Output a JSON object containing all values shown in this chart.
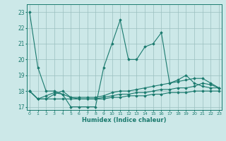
{
  "title": "",
  "xlabel": "Humidex (Indice chaleur)",
  "x_values": [
    0,
    1,
    2,
    3,
    4,
    5,
    6,
    7,
    8,
    9,
    10,
    11,
    12,
    13,
    14,
    15,
    16,
    17,
    18,
    19,
    20,
    21,
    22,
    23
  ],
  "line1": [
    23.0,
    19.5,
    18.0,
    18.0,
    17.8,
    17.0,
    17.0,
    17.0,
    17.0,
    19.5,
    21.0,
    22.5,
    20.0,
    20.0,
    20.8,
    21.0,
    21.7,
    18.5,
    18.7,
    19.0,
    18.5,
    18.3,
    18.2,
    18.2
  ],
  "line2": [
    18.0,
    17.5,
    17.7,
    17.9,
    17.8,
    17.6,
    17.6,
    17.6,
    17.6,
    17.7,
    17.9,
    18.0,
    18.0,
    18.1,
    18.2,
    18.3,
    18.4,
    18.5,
    18.6,
    18.7,
    18.8,
    18.8,
    18.5,
    18.2
  ],
  "line3": [
    18.0,
    17.5,
    17.5,
    17.5,
    17.5,
    17.5,
    17.5,
    17.5,
    17.5,
    17.5,
    17.6,
    17.6,
    17.7,
    17.7,
    17.7,
    17.8,
    17.8,
    17.9,
    17.9,
    17.9,
    18.0,
    18.0,
    18.0,
    18.0
  ],
  "line4": [
    18.0,
    17.5,
    17.5,
    17.8,
    18.0,
    17.6,
    17.5,
    17.5,
    17.5,
    17.6,
    17.7,
    17.8,
    17.8,
    17.9,
    17.9,
    18.0,
    18.1,
    18.1,
    18.2,
    18.2,
    18.3,
    18.5,
    18.4,
    18.2
  ],
  "color": "#1a7a6e",
  "bg_color": "#cce8e8",
  "grid_color": "#9bbfbf",
  "ylim": [
    16.8,
    23.5
  ],
  "yticks": [
    17,
    18,
    19,
    20,
    21,
    22,
    23
  ],
  "xlim": [
    -0.3,
    23.3
  ],
  "marker": "D",
  "markersize": 1.8,
  "linewidth": 0.8
}
